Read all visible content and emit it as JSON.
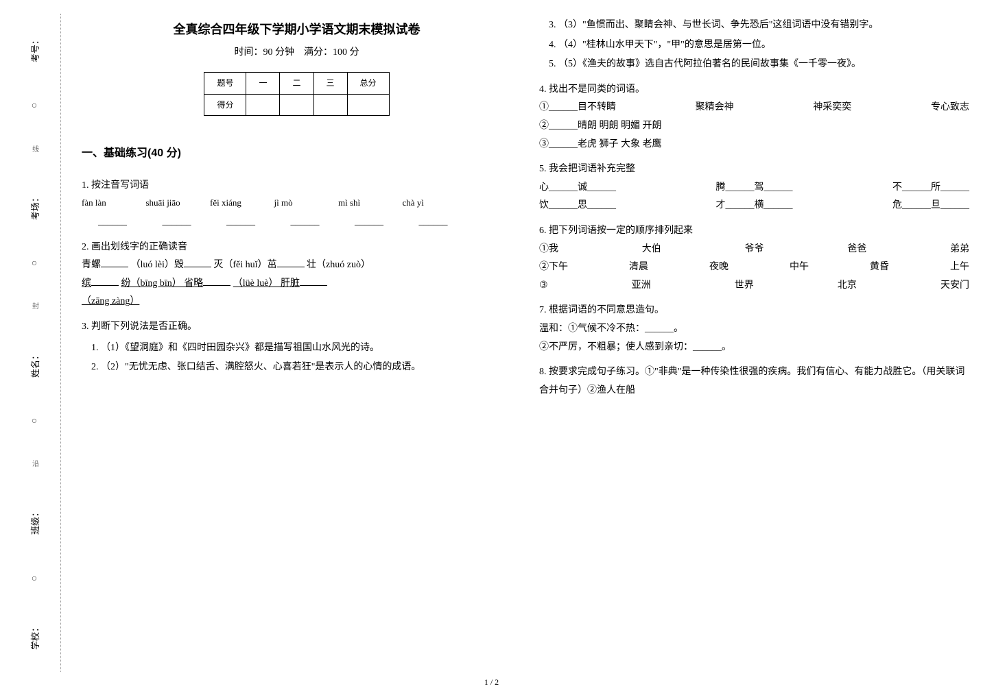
{
  "title": "全真综合四年级下学期小学语文期末模拟试卷",
  "subtitle_time": "时间：90 分钟",
  "subtitle_full": "满分：100 分",
  "side": {
    "school": "学校：",
    "class": "班级：",
    "name": "姓名：",
    "room": "考场：",
    "seat": "考号：",
    "cut": "沿",
    "cut2": "线",
    "cut3": "封",
    "circle": "○"
  },
  "score_table": {
    "head_label": "题号",
    "cols": [
      "一",
      "二",
      "三",
      "总分"
    ],
    "row_label": "得分"
  },
  "section1_title": "一、基础练习(40 分)",
  "q1": {
    "stem": "1. 按注音写词语",
    "pinyin": [
      "fàn làn",
      "shuāi jiāo",
      "fěi xiáng",
      "jì mò",
      "mì shì",
      "chà yì"
    ],
    "blank": "______"
  },
  "q2": {
    "stem": "2. 画出划线字的正确读音",
    "line1_a": "青螺",
    "line1_b": "（luó lèi）毁",
    "line1_c": "灭（fěi huǐ）茁",
    "line1_d": "壮（zhuó zuò）",
    "line2_a": "缤",
    "line2_b": "纷（bīng bīn） 省略",
    "line2_c": "（lüè luè） 肝脏",
    "line2_d": "（zāng zàng）"
  },
  "q3": {
    "stem": "3. 判断下列说法是否正确。",
    "items": [
      "（1）《望洞庭》和《四时田园杂兴》都是描写祖国山水风光的诗。",
      "（2）\"无忧无虑、张口结舌、满腔怒火、心喜若狂\"是表示人的心情的成语。",
      "（3）\"鱼惯而出、聚睛会神、与世长词、争先恐后\"这组词语中没有错别字。",
      "（4）\"桂林山水甲天下\"，\"甲\"的意思是居第一位。",
      "（5）《渔夫的故事》选自古代阿拉伯著名的民间故事集《一千零一夜》。"
    ]
  },
  "q4": {
    "stem": "4. 找出不是同类的词语。",
    "row1": [
      "①______目不转睛",
      "聚精会神",
      "神采奕奕",
      "专心致志"
    ],
    "row2": "②______晴朗  明朗  明媚  开朗",
    "row3": "③______老虎  狮子  大象  老鹰"
  },
  "q5": {
    "stem": "5. 我会把词语补充完整",
    "row1": [
      "心______诚______",
      "腾______驾______",
      "不______所______"
    ],
    "row2": [
      "饮______思______",
      "才______横______",
      "危______旦______"
    ]
  },
  "q6": {
    "stem": "6. 把下列词语按一定的顺序排列起来",
    "r1": [
      "①我",
      "大伯",
      "爷爷",
      "爸爸",
      "弟弟"
    ],
    "r2": [
      "②下午",
      "清晨",
      "夜晚",
      "中午",
      "黄昏",
      "上午"
    ],
    "r3": [
      "③",
      "亚洲",
      "世界",
      "北京",
      "天安门"
    ]
  },
  "q7": {
    "stem": "7. 根据词语的不同意思造句。",
    "line1": "温和：①气候不冷不热：______。",
    "line2": "②不严厉，不粗暴；使人感到亲切：______。"
  },
  "q8": {
    "stem": "8. 按要求完成句子练习。①\"非典\"是一种传染性很强的疾病。我们有信心、有能力战胜它。（用关联词合并句子）②渔人在船"
  },
  "page_num": "1 / 2"
}
